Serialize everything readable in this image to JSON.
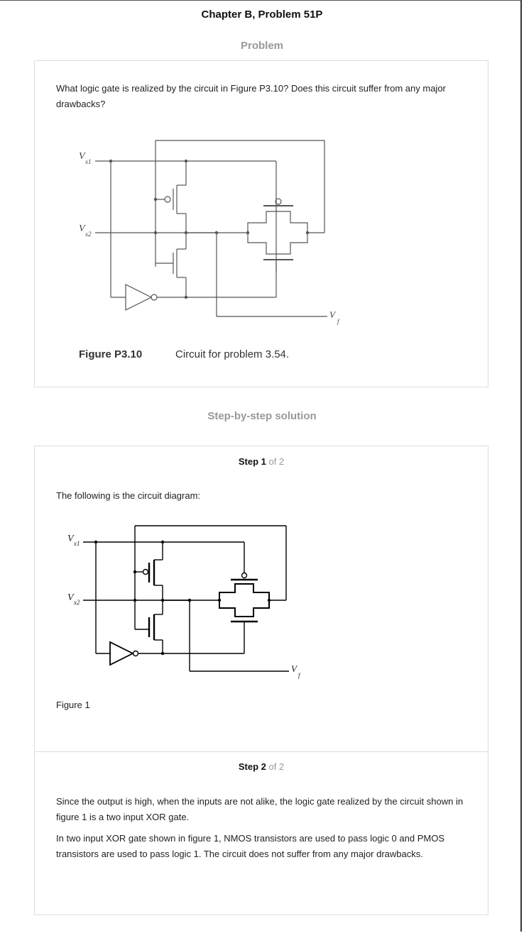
{
  "page": {
    "title": "Chapter B, Problem 51P",
    "problem_heading": "Problem",
    "solution_heading": "Step-by-step solution"
  },
  "problem": {
    "question": "What logic gate is realized by the circuit in Figure P3.10? Does this circuit suffer from any major drawbacks?",
    "figure": {
      "label_vx1": "V",
      "sub_vx1": "x1",
      "label_vx2": "V",
      "sub_vx2": "x2",
      "label_vf": "V",
      "sub_vf": "f",
      "caption_label": "Figure P3.10",
      "caption_text": "Circuit for problem 3.54."
    }
  },
  "steps": [
    {
      "step_word": "Step 1",
      "step_total": " of 2",
      "intro": "The following is the circuit diagram:",
      "figure": {
        "label_vx1": "V",
        "sub_vx1": "x1",
        "label_vx2": "V",
        "sub_vx2": "x2",
        "label_vf": "V",
        "sub_vf": "f"
      },
      "figure_caption": "Figure 1"
    },
    {
      "step_word": "Step 2",
      "step_total": " of 2",
      "para1": "Since the output is high, when the inputs are not alike, the logic gate realized by the circuit shown in figure 1 is a two input XOR gate.",
      "para2": "In two input XOR gate shown in figure 1, NMOS transistors are used to pass logic 0 and PMOS transistors are used to pass logic 1. The circuit does not suffer from any major drawbacks."
    }
  ]
}
